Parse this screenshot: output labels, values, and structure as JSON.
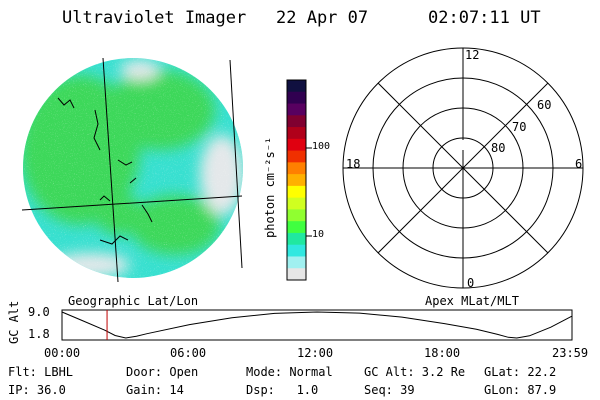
{
  "header": {
    "title": "Ultraviolet Imager",
    "date": "22 Apr 07",
    "time": "02:07:11 UT"
  },
  "colorbar": {
    "label": "photon cm⁻²s⁻¹",
    "ticks": [
      "100",
      "10"
    ],
    "colors": [
      "#101040",
      "#300050",
      "#580060",
      "#800030",
      "#b0001a",
      "#e00010",
      "#f03000",
      "#ff8000",
      "#ffb000",
      "#ffff00",
      "#d0ff20",
      "#90ff30",
      "#40ff40",
      "#20e8a0",
      "#30e8e0",
      "#a0f0f0",
      "#e6e6e6"
    ]
  },
  "geo_map": {
    "label": "Geographic Lat/Lon",
    "colors": {
      "green": "#3ed85a",
      "cyan": "#38e0d0",
      "gray": "#e4e8ea",
      "yellow": "#c0ff30"
    }
  },
  "polar_grid": {
    "label": "Apex MLat/MLT",
    "mlt_labels": {
      "top": "12",
      "left": "18",
      "right": "6",
      "bottom": "0"
    },
    "lat_labels": [
      "60",
      "70",
      "80"
    ]
  },
  "orbit_plot": {
    "ylabel": "GC Alt",
    "y_ticks": [
      "9.0",
      "1.8"
    ],
    "x_ticks": [
      "00:00",
      "06:00",
      "12:00",
      "18:00",
      "23:59"
    ],
    "y_range": [
      1.8,
      9.0
    ],
    "curve": [
      [
        0,
        9.0
      ],
      [
        1,
        6.5
      ],
      [
        2,
        4.0
      ],
      [
        2.5,
        2.5
      ],
      [
        3,
        1.8
      ],
      [
        3.5,
        2.3
      ],
      [
        4,
        3.0
      ],
      [
        6,
        5.5
      ],
      [
        8,
        7.4
      ],
      [
        10,
        8.6
      ],
      [
        12,
        9.0
      ],
      [
        14,
        8.7
      ],
      [
        16,
        7.6
      ],
      [
        18,
        5.8
      ],
      [
        19.5,
        4.2
      ],
      [
        20.5,
        2.8
      ],
      [
        21,
        2.0
      ],
      [
        21.4,
        1.8
      ],
      [
        22,
        2.4
      ],
      [
        23,
        4.8
      ],
      [
        23.98,
        7.8
      ]
    ],
    "marker_hour": 2.12,
    "marker_color": "#c00000"
  },
  "info": {
    "filter": "Flt: LBHL",
    "door": "Door: Open",
    "mode": "Mode: Normal",
    "gc_alt": "GC Alt: 3.2 Re",
    "glat": "GLat: 22.2",
    "ip": "IP: 36.0",
    "gain": "Gain: 14",
    "dsp": "Dsp:   1.0",
    "seq": "Seq: 39",
    "glon": "GLon: 87.9"
  }
}
